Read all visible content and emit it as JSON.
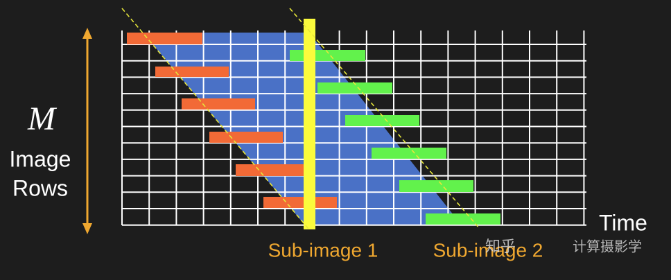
{
  "axis": {
    "symbol": "M",
    "label_line1": "Image",
    "label_line2": "Rows",
    "time": "Time"
  },
  "sub_images": [
    "Sub-image 1",
    "Sub-image 2"
  ],
  "watermark": {
    "site": "知乎",
    "author": "计算摄影学"
  }
}
